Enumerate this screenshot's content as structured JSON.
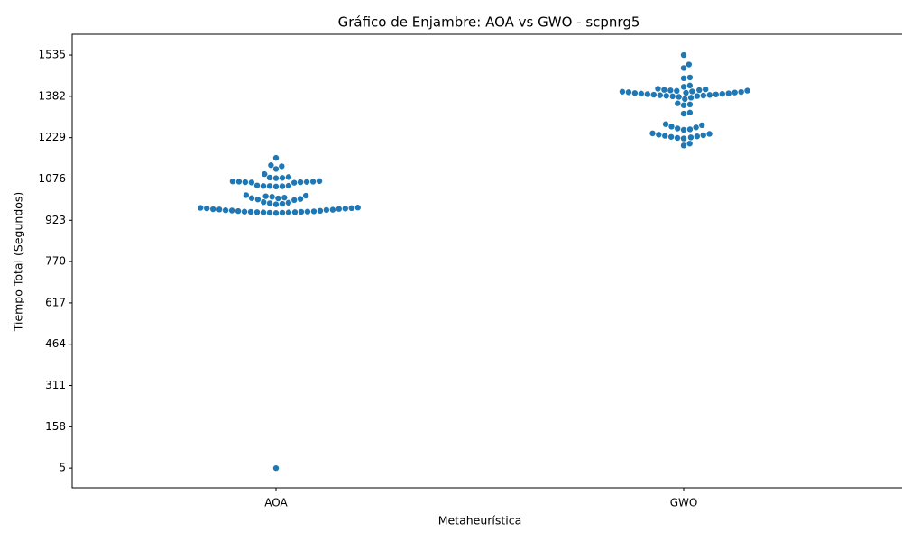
{
  "chart_data": {
    "type": "swarm",
    "title": "Gráfico de Enjambre: AOA vs GWO - scpnrg5",
    "x_label": "Metaheurística",
    "y_label": "Tiempo Total (Segundos)",
    "categories": [
      "AOA",
      "GWO"
    ],
    "color": "#1f77b4",
    "ylim": [
      -68,
      1612
    ],
    "yticks": [
      5,
      158,
      311,
      464,
      617,
      770,
      923,
      1076,
      1229,
      1382,
      1535
    ],
    "values": [
      [
        5,
        1154,
        1127,
        1123,
        1113,
        1094,
        1083,
        1081,
        1080,
        1079,
        1068,
        1067,
        1066,
        1066,
        1065,
        1064,
        1064,
        1063,
        1062,
        1052,
        1051,
        1050,
        1050,
        1049,
        1048,
        1016,
        1014,
        1012,
        1010,
        1007,
        1005,
        1004,
        1002,
        1000,
        998,
        990,
        988,
        986,
        984,
        982,
        970,
        969,
        968,
        967,
        966,
        965,
        964,
        963,
        962,
        961,
        960,
        959,
        958,
        957,
        956,
        955,
        955,
        954,
        954,
        953,
        953,
        952,
        952,
        951,
        951,
        950
      ],
      [
        1535,
        1500,
        1487,
        1452,
        1449,
        1422,
        1417,
        1410,
        1408,
        1406,
        1405,
        1404,
        1403,
        1402,
        1400,
        1399,
        1398,
        1397,
        1396,
        1395,
        1394,
        1393,
        1392,
        1391,
        1390,
        1389,
        1388,
        1387,
        1386,
        1385,
        1384,
        1383,
        1382,
        1380,
        1377,
        1372,
        1356,
        1352,
        1349,
        1322,
        1318,
        1279,
        1275,
        1270,
        1267,
        1263,
        1260,
        1258,
        1245,
        1243,
        1240,
        1238,
        1236,
        1234,
        1232,
        1230,
        1228,
        1226,
        1207,
        1200
      ]
    ]
  }
}
